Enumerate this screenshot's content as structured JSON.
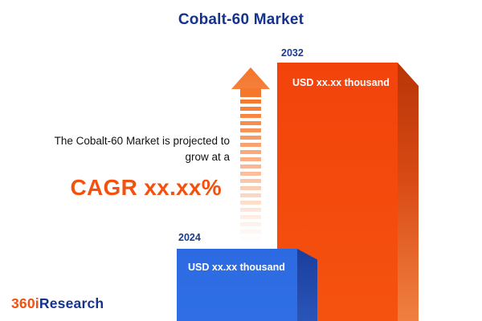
{
  "header": {
    "title": "Cobalt-60 Market"
  },
  "projection": {
    "line1": "The Cobalt-60 Market is projected to",
    "line2": "grow at a",
    "cagr_label": "CAGR xx.xx%"
  },
  "chart_data": {
    "type": "bar",
    "title": "Cobalt-60 Market",
    "categories": [
      "2024",
      "2032"
    ],
    "values": [
      "xx.xx",
      "xx.xx"
    ],
    "unit": "USD thousand",
    "bars": [
      {
        "year": "2024",
        "value_label": "USD xx.xx thousand",
        "color": "#2e6ce2"
      },
      {
        "year": "2032",
        "value_label": "USD xx.xx thousand",
        "color": "#f44b0d"
      }
    ],
    "legend": false,
    "xlabel": "",
    "ylabel": ""
  },
  "branding": {
    "logo_orange": "360i",
    "logo_navy": "Research"
  },
  "colors": {
    "title_navy": "#16338c",
    "accent_orange": "#f4500e",
    "bar_blue": "#2e6ce2",
    "bar_blue_side": "#1b3e9d",
    "bar_orange": "#f44b0d",
    "bar_orange_side": "#c23a0c",
    "arrow_orange": "#f5772e"
  }
}
